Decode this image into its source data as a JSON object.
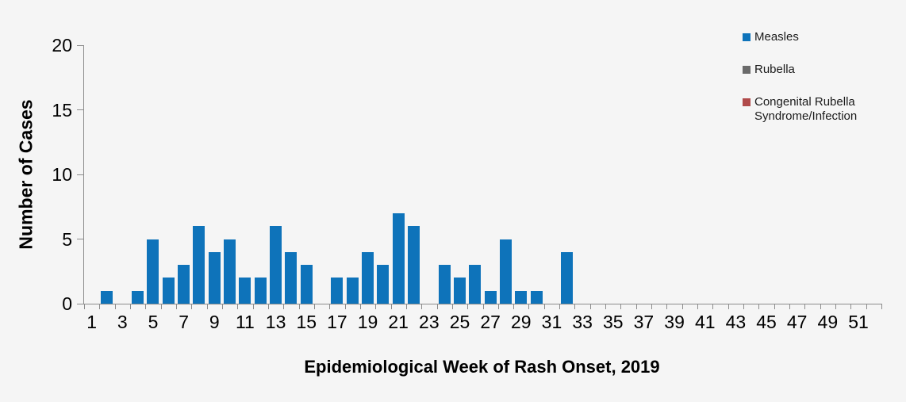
{
  "chart_data": {
    "type": "bar",
    "title": "",
    "xlabel": "Epidemiological Week of Rash Onset, 2019",
    "ylabel": "Number of Cases",
    "x": [
      1,
      2,
      3,
      4,
      5,
      6,
      7,
      8,
      9,
      10,
      11,
      12,
      13,
      14,
      15,
      16,
      17,
      18,
      19,
      20,
      21,
      22,
      23,
      24,
      25,
      26,
      27,
      28,
      29,
      30,
      31,
      32,
      33,
      34,
      35,
      36,
      37,
      38,
      39,
      40,
      41,
      42,
      43,
      44,
      45,
      46,
      47,
      48,
      49,
      50,
      51,
      52
    ],
    "xtick_labels": [
      "1",
      "3",
      "5",
      "7",
      "9",
      "11",
      "13",
      "15",
      "17",
      "19",
      "21",
      "23",
      "25",
      "27",
      "29",
      "31",
      "33",
      "35",
      "37",
      "39",
      "41",
      "43",
      "45",
      "47",
      "49",
      "51"
    ],
    "ylim": [
      0,
      20
    ],
    "yticks": [
      0,
      5,
      10,
      15,
      20
    ],
    "grid": false,
    "legend_position": "top-right",
    "series": [
      {
        "name": "Measles",
        "color": "#0e73ba",
        "values": [
          0,
          1,
          0,
          1,
          5,
          2,
          3,
          6,
          4,
          5,
          2,
          2,
          6,
          4,
          3,
          0,
          2,
          2,
          4,
          3,
          7,
          6,
          0,
          3,
          2,
          3,
          1,
          5,
          1,
          1,
          0,
          4,
          0,
          0,
          0,
          0,
          0,
          0,
          0,
          0,
          0,
          0,
          0,
          0,
          0,
          0,
          0,
          0,
          0,
          0,
          0,
          0
        ]
      },
      {
        "name": "Rubella",
        "color": "#6a6a6a",
        "values": [
          0,
          0,
          0,
          0,
          0,
          0,
          0,
          0,
          0,
          0,
          0,
          0,
          0,
          0,
          0,
          0,
          0,
          0,
          0,
          0,
          0,
          0,
          0,
          0,
          0,
          0,
          0,
          0,
          0,
          0,
          0,
          0,
          0,
          0,
          0,
          0,
          0,
          0,
          0,
          0,
          0,
          0,
          0,
          0,
          0,
          0,
          0,
          0,
          0,
          0,
          0,
          0
        ]
      },
      {
        "name": "Congenital Rubella Syndrome/Infection",
        "color": "#b04a4a",
        "values": [
          0,
          0,
          0,
          0,
          0,
          0,
          0,
          0,
          0,
          0,
          0,
          0,
          0,
          0,
          0,
          0,
          0,
          0,
          0,
          0,
          0,
          0,
          0,
          0,
          0,
          0,
          0,
          0,
          0,
          0,
          0,
          0,
          0,
          0,
          0,
          0,
          0,
          0,
          0,
          0,
          0,
          0,
          0,
          0,
          0,
          0,
          0,
          0,
          0,
          0,
          0,
          0
        ]
      }
    ]
  },
  "legend": {
    "items": [
      {
        "label": "Measles",
        "color": "#0e73ba"
      },
      {
        "label": "Rubella",
        "color": "#6a6a6a"
      },
      {
        "label": "Congenital Rubella Syndrome/Infection",
        "color": "#b04a4a"
      }
    ]
  },
  "colors": {
    "background": "#f5f5f5",
    "axis": "#8c8c8c",
    "text": "#000000"
  }
}
